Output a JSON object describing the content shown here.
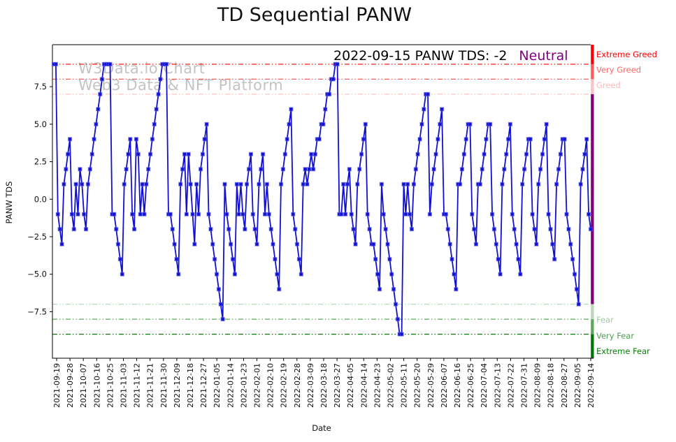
{
  "title": "TD Sequential PANW",
  "watermark": {
    "line1": "W3Data.io Chart",
    "line2": "Web3 Data & NFT Platform"
  },
  "annotation": {
    "text": "2022-09-15 PANW TDS: -2",
    "sentiment": "Neutral",
    "sentiment_color": "#800080"
  },
  "chart_data": {
    "type": "line",
    "title": "TD Sequential PANW",
    "xlabel": "Date",
    "ylabel": "PANW TDS",
    "legend": "none",
    "grid": false,
    "line_color": "#1111cf",
    "marker": "square",
    "ylim": [
      -10.6,
      10.3
    ],
    "y_tick_values": [
      7.5,
      5.0,
      2.5,
      0.0,
      -2.5,
      -5.0,
      -7.5
    ],
    "y_tick_labels": [
      "7.5",
      "5.0",
      "2.5",
      "0.0",
      "−2.5",
      "−5.0",
      "−7.5"
    ],
    "x_tick_labels": [
      "2021-09-19",
      "2021-09-28",
      "2021-10-07",
      "2021-10-16",
      "2021-10-25",
      "2021-11-03",
      "2021-11-12",
      "2021-11-21",
      "2021-11-30",
      "2021-12-09",
      "2021-12-18",
      "2021-12-27",
      "2022-01-05",
      "2022-01-14",
      "2022-01-23",
      "2022-02-01",
      "2022-02-10",
      "2022-02-19",
      "2022-02-28",
      "2022-03-09",
      "2022-03-18",
      "2022-03-27",
      "2022-04-05",
      "2022-04-14",
      "2022-04-23",
      "2022-05-02",
      "2022-05-11",
      "2022-05-20",
      "2022-05-29",
      "2022-06-07",
      "2022-06-16",
      "2022-06-25",
      "2022-07-04",
      "2022-07-13",
      "2022-07-22",
      "2022-07-31",
      "2022-08-09",
      "2022-08-18",
      "2022-08-27",
      "2022-09-05",
      "2022-09-14"
    ],
    "values": [
      9,
      9,
      -1,
      -2,
      -3,
      1,
      2,
      3,
      4,
      -1,
      -2,
      1,
      -1,
      2,
      1,
      -1,
      -2,
      1,
      2,
      3,
      4,
      5,
      6,
      7,
      8,
      9,
      9,
      9,
      9,
      -1,
      -1,
      -2,
      -3,
      -4,
      -5,
      1,
      2,
      3,
      4,
      -1,
      -2,
      4,
      3,
      -1,
      1,
      -1,
      1,
      2,
      3,
      4,
      5,
      6,
      7,
      8,
      9,
      9,
      9,
      -1,
      -1,
      -2,
      -3,
      -4,
      -5,
      1,
      2,
      3,
      -1,
      3,
      1,
      -1,
      -3,
      1,
      -1,
      2,
      3,
      4,
      5,
      -1,
      -2,
      -3,
      -4,
      -5,
      -6,
      -7,
      -8,
      1,
      -1,
      -2,
      -3,
      -4,
      -5,
      1,
      -1,
      1,
      -1,
      -2,
      1,
      2,
      3,
      -1,
      -2,
      -3,
      1,
      2,
      3,
      -1,
      1,
      -1,
      -2,
      -3,
      -4,
      -5,
      -6,
      1,
      2,
      3,
      4,
      5,
      6,
      -1,
      -2,
      -3,
      -4,
      -5,
      1,
      2,
      1,
      2,
      3,
      2,
      3,
      4,
      4,
      5,
      5,
      6,
      7,
      7,
      8,
      8,
      9,
      9,
      -1,
      -1,
      1,
      -1,
      1,
      2,
      -1,
      -2,
      -3,
      1,
      2,
      3,
      4,
      5,
      -1,
      -2,
      -3,
      -3,
      -4,
      -5,
      -6,
      1,
      -1,
      -2,
      -3,
      -4,
      -5,
      -6,
      -7,
      -8,
      -9,
      -9,
      1,
      -1,
      1,
      -1,
      -2,
      1,
      2,
      3,
      4,
      5,
      6,
      7,
      7,
      -1,
      1,
      2,
      3,
      4,
      5,
      6,
      -1,
      -1,
      -2,
      -3,
      -4,
      -5,
      -6,
      1,
      1,
      2,
      3,
      4,
      5,
      5,
      -1,
      -2,
      -3,
      1,
      1,
      2,
      3,
      4,
      5,
      5,
      -1,
      -2,
      -3,
      -4,
      -5,
      1,
      2,
      3,
      4,
      5,
      -1,
      -2,
      -3,
      -4,
      -5,
      1,
      2,
      3,
      4,
      4,
      -1,
      -2,
      -3,
      1,
      2,
      3,
      4,
      5,
      -1,
      -2,
      -3,
      -4,
      1,
      2,
      3,
      4,
      4,
      -1,
      -2,
      -3,
      -4,
      -5,
      -6,
      -7,
      1,
      2,
      3,
      4,
      -1,
      -2
    ],
    "thresholds": [
      {
        "label": "Extreme Greed",
        "value": 9,
        "line_color": "#ff0000",
        "label_color": "#ff0000"
      },
      {
        "label": "Very Greed",
        "value": 8,
        "line_color": "#ff5c5c",
        "label_color": "#ff6666"
      },
      {
        "label": "Greed",
        "value": 7,
        "line_color": "#ffc2c2",
        "label_color": "#ffb9b9"
      },
      {
        "label": "Fear",
        "value": -7,
        "line_color": "#b9d8b9",
        "label_color": "#a3c9a3"
      },
      {
        "label": "Very Fear",
        "value": -8,
        "line_color": "#5aa85a",
        "label_color": "#4f9d4f"
      },
      {
        "label": "Extreme Fear",
        "value": -9,
        "line_color": "#0a7d0a",
        "label_color": "#0a7d0a"
      }
    ],
    "sidebar_zones": [
      {
        "from_value": 10.3,
        "to_value": 9,
        "color": "#ff0000"
      },
      {
        "from_value": 9,
        "to_value": 8,
        "color": "#ff5c5c"
      },
      {
        "from_value": 8,
        "to_value": 7,
        "color": "#ffc2c2"
      },
      {
        "from_value": 7,
        "to_value": -7,
        "color": "#800080"
      },
      {
        "from_value": -7,
        "to_value": -8,
        "color": "#b9d8b9"
      },
      {
        "from_value": -8,
        "to_value": -9,
        "color": "#5aa85a"
      },
      {
        "from_value": -9,
        "to_value": -10.6,
        "color": "#007800"
      }
    ]
  }
}
